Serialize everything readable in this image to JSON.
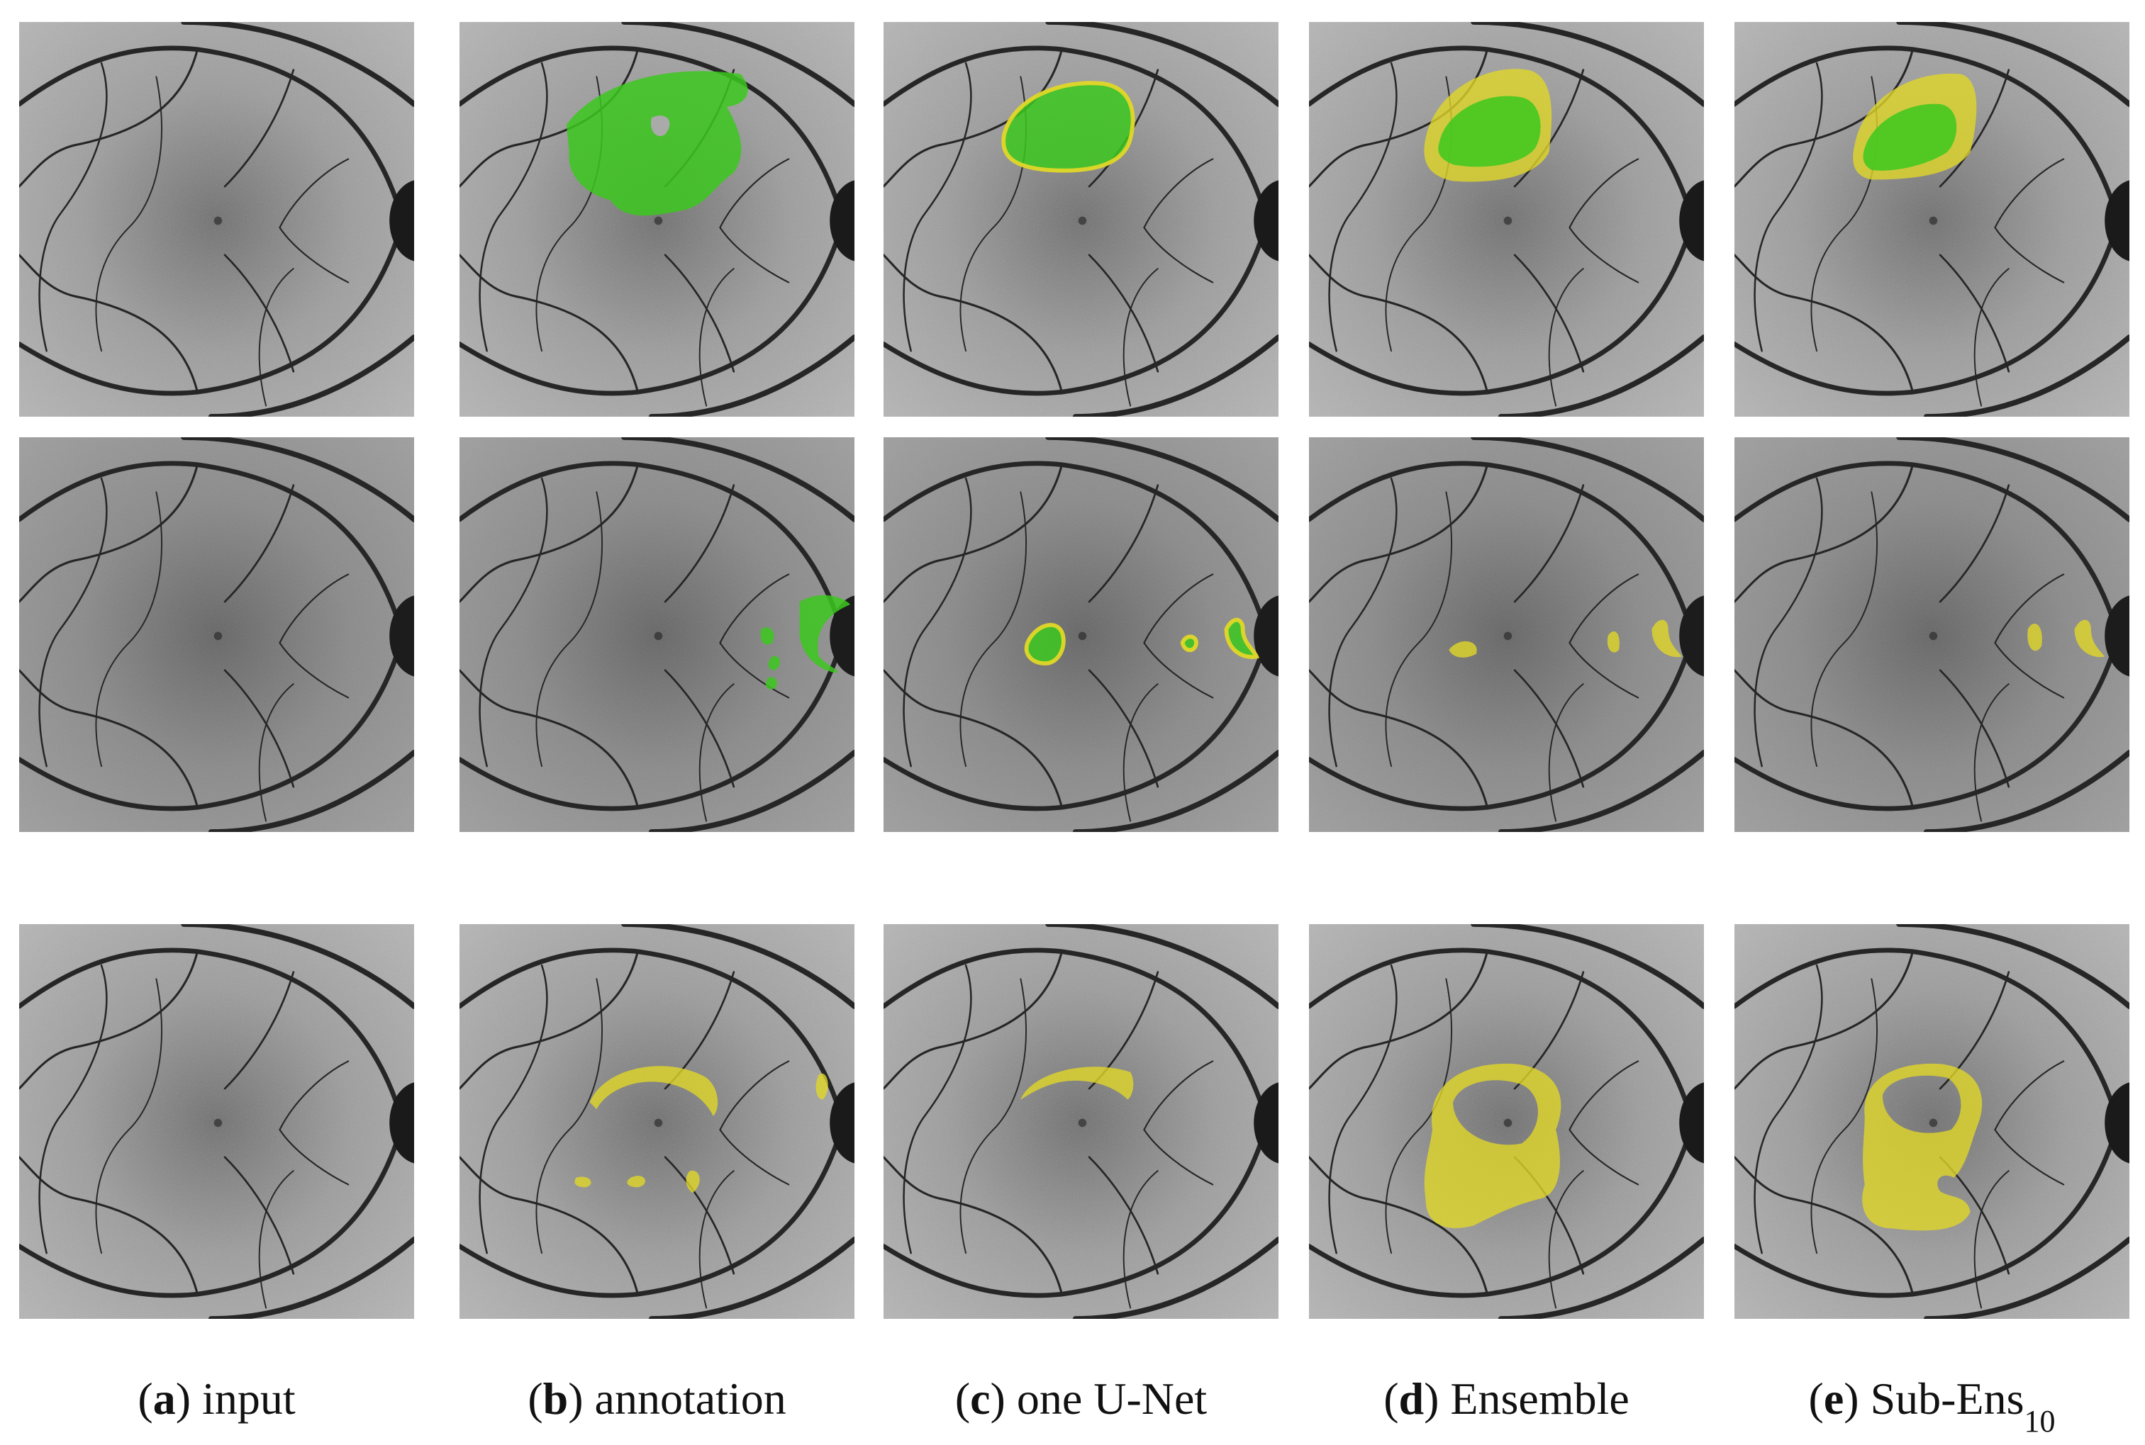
{
  "captions": [
    {
      "open": "(",
      "letter": "a",
      "close": ")",
      "text": "input"
    },
    {
      "open": "(",
      "letter": "b",
      "close": ")",
      "text": "annotation"
    },
    {
      "open": "(",
      "letter": "c",
      "close": ")",
      "text": "one U-Net"
    },
    {
      "open": "(",
      "letter": "d",
      "close": ")",
      "text": "Ensemble"
    },
    {
      "open": "(",
      "letter": "e",
      "close": ")",
      "text": "Sub-Ens",
      "subscript": "10"
    }
  ]
}
